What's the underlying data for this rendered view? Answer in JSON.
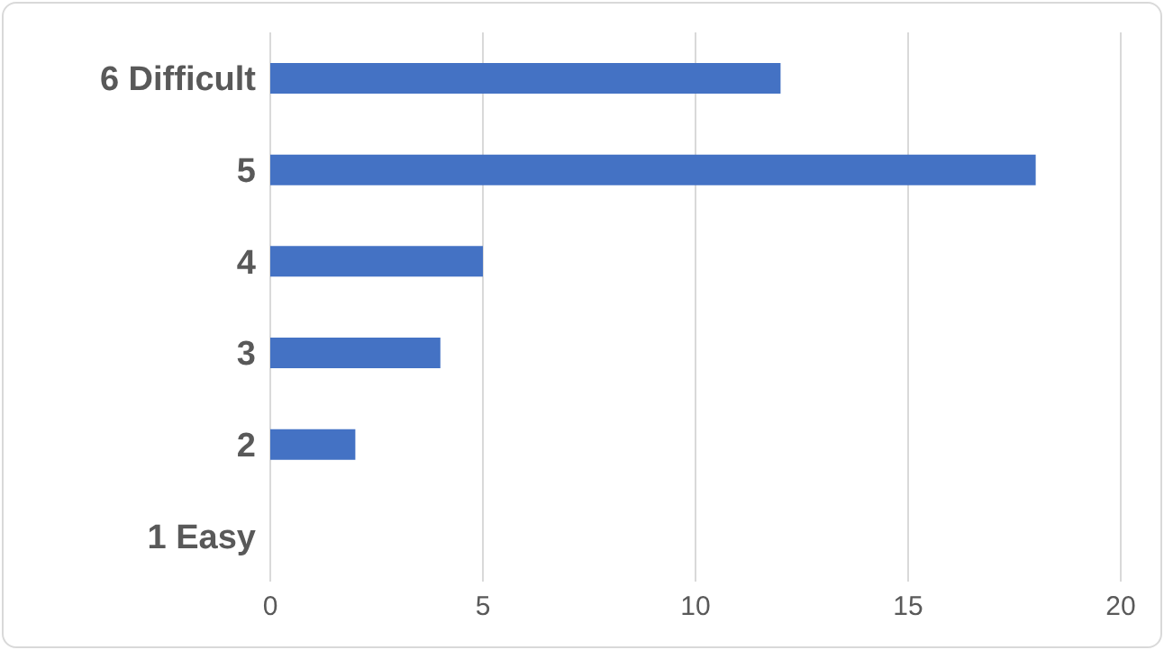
{
  "chart_data": {
    "type": "bar",
    "orientation": "horizontal",
    "categories": [
      "6 Difficult",
      "5",
      "4",
      "3",
      "2",
      "1 Easy"
    ],
    "values": [
      12,
      18,
      5,
      4,
      2,
      0
    ],
    "color": "#4472c4",
    "xlim": [
      0,
      20
    ],
    "xticks": [
      0,
      5,
      10,
      15,
      20
    ],
    "grid": "x"
  }
}
